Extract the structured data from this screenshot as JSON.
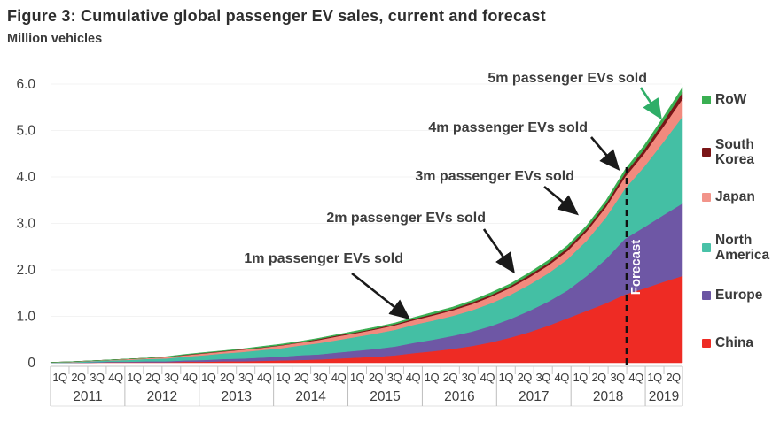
{
  "title": "Figure 3: Cumulative global passenger EV sales, current and forecast",
  "y_axis_label": "Million vehicles",
  "y_ticks": [
    "6.0",
    "5.0",
    "4.0",
    "3.0",
    "2.0",
    "1.0",
    "0"
  ],
  "forecast_label": "Forecast",
  "annotations": [
    {
      "text": "1m passenger EVs sold",
      "color": "#3d3d3d"
    },
    {
      "text": "2m passenger EVs sold",
      "color": "#3d3d3d"
    },
    {
      "text": "3m passenger EVs sold",
      "color": "#3d3d3d"
    },
    {
      "text": "4m passenger EVs sold",
      "color": "#3d3d3d"
    },
    {
      "text": "5m passenger EVs sold",
      "color": "#2fae68"
    }
  ],
  "legend": [
    {
      "label": "RoW",
      "color": "#3aaf52"
    },
    {
      "label": "South Korea",
      "color": "#7a1517"
    },
    {
      "label": "Japan",
      "color": "#f2948a"
    },
    {
      "label": "North America",
      "color": "#49c2a8"
    },
    {
      "label": "Europe",
      "color": "#6b55a3"
    },
    {
      "label": "China",
      "color": "#ee2b24"
    }
  ],
  "x_axis": {
    "quarter_labels": [
      "1Q",
      "2Q",
      "3Q",
      "4Q"
    ],
    "years": [
      {
        "label": "2011",
        "quarters": 4
      },
      {
        "label": "2012",
        "quarters": 4
      },
      {
        "label": "2013",
        "quarters": 4
      },
      {
        "label": "2014",
        "quarters": 4
      },
      {
        "label": "2015",
        "quarters": 4
      },
      {
        "label": "2016",
        "quarters": 4
      },
      {
        "label": "2017",
        "quarters": 4
      },
      {
        "label": "2018",
        "quarters": 4
      },
      {
        "label": "2019",
        "quarters": 2
      }
    ]
  },
  "chart_data": {
    "type": "area",
    "stacked": true,
    "title": "Figure 3: Cumulative global passenger EV sales, current and forecast",
    "ylabel": "Million vehicles",
    "ylim": [
      0,
      6
    ],
    "grid": false,
    "legend_position": "right",
    "forecast_start": "4Q 2018",
    "x": [
      "1Q 2011",
      "2Q 2011",
      "3Q 2011",
      "4Q 2011",
      "1Q 2012",
      "2Q 2012",
      "3Q 2012",
      "4Q 2012",
      "1Q 2013",
      "2Q 2013",
      "3Q 2013",
      "4Q 2013",
      "1Q 2014",
      "2Q 2014",
      "3Q 2014",
      "4Q 2014",
      "1Q 2015",
      "2Q 2015",
      "3Q 2015",
      "4Q 2015",
      "1Q 2016",
      "2Q 2016",
      "3Q 2016",
      "4Q 2016",
      "1Q 2017",
      "2Q 2017",
      "3Q 2017",
      "4Q 2017",
      "1Q 2018",
      "2Q 2018",
      "3Q 2018",
      "4Q 2018",
      "1Q 2019",
      "2Q 2019"
    ],
    "series": [
      {
        "name": "China",
        "color": "#ee2b24",
        "values": [
          0.0,
          0.0,
          0.0,
          0.01,
          0.01,
          0.01,
          0.01,
          0.02,
          0.02,
          0.03,
          0.03,
          0.04,
          0.05,
          0.06,
          0.07,
          0.09,
          0.11,
          0.13,
          0.16,
          0.21,
          0.25,
          0.3,
          0.36,
          0.44,
          0.54,
          0.66,
          0.8,
          0.96,
          1.12,
          1.28,
          1.47,
          1.6,
          1.74,
          1.87
        ]
      },
      {
        "name": "Europe",
        "color": "#6e57a5",
        "values": [
          0.0,
          0.0,
          0.01,
          0.01,
          0.01,
          0.02,
          0.02,
          0.03,
          0.04,
          0.05,
          0.06,
          0.07,
          0.08,
          0.1,
          0.11,
          0.13,
          0.15,
          0.17,
          0.19,
          0.22,
          0.25,
          0.28,
          0.31,
          0.35,
          0.4,
          0.46,
          0.52,
          0.6,
          0.75,
          0.95,
          1.2,
          1.32,
          1.44,
          1.56
        ]
      },
      {
        "name": "North America",
        "color": "#44bfa4",
        "values": [
          0.01,
          0.01,
          0.02,
          0.03,
          0.04,
          0.05,
          0.06,
          0.08,
          0.1,
          0.12,
          0.14,
          0.16,
          0.18,
          0.21,
          0.24,
          0.27,
          0.3,
          0.33,
          0.36,
          0.39,
          0.41,
          0.43,
          0.46,
          0.49,
          0.52,
          0.56,
          0.61,
          0.67,
          0.76,
          0.9,
          1.08,
          1.3,
          1.57,
          1.87
        ]
      },
      {
        "name": "Japan",
        "color": "#f28a7e",
        "values": [
          0.0,
          0.01,
          0.01,
          0.01,
          0.02,
          0.02,
          0.03,
          0.03,
          0.04,
          0.04,
          0.05,
          0.05,
          0.06,
          0.06,
          0.07,
          0.08,
          0.08,
          0.09,
          0.1,
          0.1,
          0.11,
          0.12,
          0.13,
          0.14,
          0.15,
          0.16,
          0.17,
          0.18,
          0.2,
          0.22,
          0.25,
          0.28,
          0.33,
          0.38
        ]
      },
      {
        "name": "South Korea",
        "color": "#7a1517",
        "values": [
          0.0,
          0.0,
          0.0,
          0.0,
          0.0,
          0.0,
          0.0,
          0.01,
          0.01,
          0.01,
          0.01,
          0.01,
          0.01,
          0.01,
          0.02,
          0.02,
          0.02,
          0.02,
          0.02,
          0.03,
          0.03,
          0.03,
          0.04,
          0.04,
          0.04,
          0.05,
          0.05,
          0.06,
          0.06,
          0.07,
          0.08,
          0.09,
          0.11,
          0.14
        ]
      },
      {
        "name": "RoW",
        "color": "#3aaf52",
        "values": [
          0.0,
          0.0,
          0.0,
          0.0,
          0.0,
          0.0,
          0.01,
          0.01,
          0.01,
          0.01,
          0.01,
          0.02,
          0.02,
          0.02,
          0.02,
          0.02,
          0.03,
          0.03,
          0.03,
          0.03,
          0.04,
          0.04,
          0.04,
          0.05,
          0.05,
          0.05,
          0.06,
          0.06,
          0.07,
          0.07,
          0.08,
          0.09,
          0.1,
          0.11
        ]
      }
    ],
    "milestone_annotations": [
      "1m passenger EVs sold",
      "2m passenger EVs sold",
      "3m passenger EVs sold",
      "4m passenger EVs sold",
      "5m passenger EVs sold"
    ]
  }
}
